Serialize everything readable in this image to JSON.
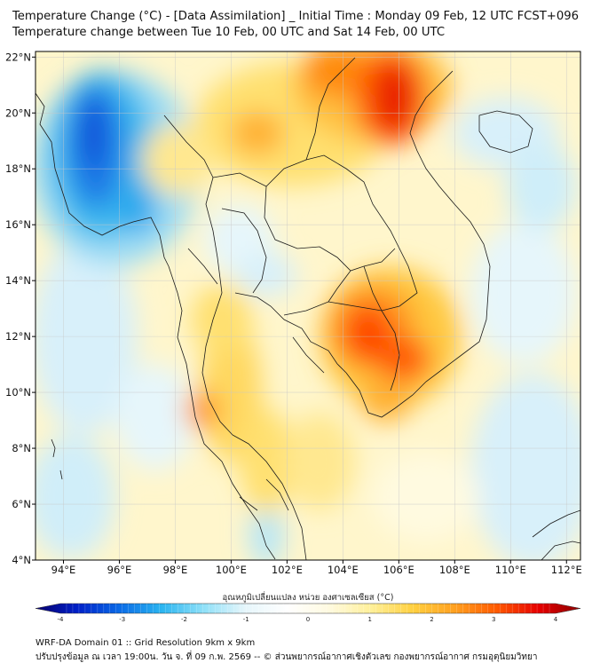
{
  "header": {
    "title_line1": "Temperature Change (°C) - [Data Assimilation] _ Initial Time : Monday 09 Feb, 12 UTC FCST+096",
    "title_line2": "Temperature change between Tue 10 Feb, 00 UTC and Sat 14 Feb, 00 UTC"
  },
  "map": {
    "lat_labels": [
      "22°N",
      "20°N",
      "18°N",
      "16°N",
      "14°N",
      "12°N",
      "10°N",
      "8°N",
      "6°N",
      "4°N"
    ],
    "lat_values": [
      22,
      20,
      18,
      16,
      14,
      12,
      10,
      8,
      6,
      4
    ],
    "lon_labels": [
      "94°E",
      "96°E",
      "98°E",
      "100°E",
      "102°E",
      "104°E",
      "106°E",
      "108°E",
      "110°E",
      "112°E"
    ],
    "lon_values": [
      94,
      96,
      98,
      100,
      102,
      104,
      106,
      108,
      110,
      112
    ],
    "lon_range": [
      93,
      112.5
    ],
    "lat_range": [
      4,
      22.2
    ]
  },
  "colorbar": {
    "label": "อุณหภูมิเปลี่ยนแปลง หน่วย องศาเซลเซียส (°C)",
    "tick_labels": [
      "-4",
      "-3",
      "-2",
      "-1",
      "0",
      "1",
      "2",
      "3",
      "4"
    ],
    "tick_values": [
      -4,
      -3,
      -2,
      -1,
      0,
      1,
      2,
      3,
      4
    ],
    "colors": [
      "#08006e",
      "#0020c8",
      "#0a6ae6",
      "#2ab4f0",
      "#8ee0f8",
      "#e6f6fb",
      "#ffffff",
      "#fffae0",
      "#fff09a",
      "#ffd040",
      "#ffa020",
      "#ff5a00",
      "#e60000",
      "#8c0000"
    ]
  },
  "footer": {
    "line1": "WRF-DA Domain 01 :: Grid Resolution 9km x 9km",
    "line2": "ปรับปรุงข้อมูล ณ เวลา 19:00น. วัน จ. ที่ 09 ก.พ. 2569 -- © ส่วนพยากรณ์อากาศเชิงตัวเลข กองพยากรณ์อากาศ กรมอุตุนิยมวิทยา"
  }
}
